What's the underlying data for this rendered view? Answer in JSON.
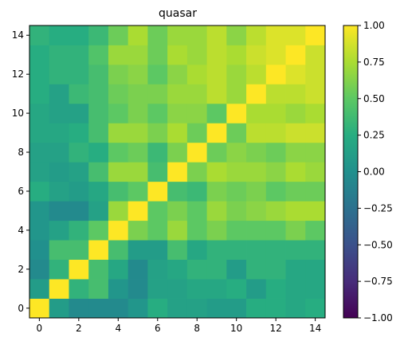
{
  "chart_data": {
    "type": "heatmap",
    "title": "quasar",
    "xlabel": "",
    "ylabel": "",
    "x_ticks": [
      "0",
      "2",
      "4",
      "6",
      "8",
      "10",
      "12",
      "14"
    ],
    "y_ticks": [
      "0",
      "2",
      "4",
      "6",
      "8",
      "10",
      "12",
      "14"
    ],
    "colorbar": {
      "colormap": "viridis",
      "range": [
        -1.0,
        1.0
      ],
      "ticks": [
        "1.00",
        "0.75",
        "0.50",
        "0.25",
        "0.00",
        "−0.25",
        "−0.50",
        "−0.75",
        "−1.00"
      ]
    },
    "row_order": "bottom-to-top",
    "matrix": [
      [
        1.0,
        0.1,
        -0.05,
        -0.05,
        -0.05,
        0.05,
        0.25,
        0.15,
        0.15,
        0.1,
        0.1,
        0.25,
        0.25,
        0.2,
        0.25
      ],
      [
        0.1,
        1.0,
        0.3,
        0.4,
        0.05,
        -0.05,
        0.15,
        0.15,
        0.2,
        0.2,
        0.25,
        0.1,
        0.25,
        0.2,
        0.2
      ],
      [
        -0.05,
        0.3,
        1.0,
        0.4,
        0.2,
        -0.05,
        0.15,
        0.2,
        0.3,
        0.3,
        0.1,
        0.3,
        0.3,
        0.2,
        0.2
      ],
      [
        0.0,
        0.4,
        0.4,
        1.0,
        0.4,
        0.1,
        0.1,
        0.4,
        0.2,
        0.3,
        0.3,
        0.3,
        0.3,
        0.3,
        0.3
      ],
      [
        0.05,
        0.15,
        0.3,
        0.5,
        1.0,
        0.6,
        0.5,
        0.7,
        0.5,
        0.6,
        0.5,
        0.5,
        0.5,
        0.6,
        0.5
      ],
      [
        0.05,
        -0.05,
        -0.05,
        0.15,
        0.7,
        1.0,
        0.5,
        0.6,
        0.5,
        0.7,
        0.6,
        0.65,
        0.7,
        0.75,
        0.75
      ],
      [
        0.25,
        0.15,
        0.1,
        0.2,
        0.4,
        0.5,
        1.0,
        0.4,
        0.35,
        0.6,
        0.55,
        0.6,
        0.5,
        0.55,
        0.55
      ],
      [
        0.15,
        0.1,
        0.15,
        0.4,
        0.7,
        0.7,
        0.4,
        1.0,
        0.6,
        0.75,
        0.7,
        0.7,
        0.65,
        0.75,
        0.7
      ],
      [
        0.15,
        0.15,
        0.3,
        0.25,
        0.5,
        0.55,
        0.35,
        0.6,
        1.0,
        0.55,
        0.65,
        0.6,
        0.55,
        0.65,
        0.65
      ],
      [
        0.2,
        0.2,
        0.25,
        0.4,
        0.7,
        0.7,
        0.6,
        0.75,
        0.55,
        1.0,
        0.55,
        0.8,
        0.8,
        0.85,
        0.85
      ],
      [
        0.2,
        0.15,
        0.15,
        0.4,
        0.5,
        0.6,
        0.5,
        0.65,
        0.65,
        0.5,
        1.0,
        0.75,
        0.75,
        0.7,
        0.75
      ],
      [
        0.25,
        0.15,
        0.35,
        0.4,
        0.55,
        0.6,
        0.6,
        0.7,
        0.7,
        0.8,
        0.7,
        1.0,
        0.8,
        0.8,
        0.85
      ],
      [
        0.25,
        0.3,
        0.3,
        0.4,
        0.6,
        0.65,
        0.5,
        0.65,
        0.75,
        0.8,
        0.7,
        0.8,
        1.0,
        0.9,
        0.85
      ],
      [
        0.25,
        0.3,
        0.3,
        0.45,
        0.7,
        0.7,
        0.55,
        0.75,
        0.7,
        0.8,
        0.75,
        0.85,
        0.9,
        1.0,
        0.85
      ],
      [
        0.3,
        0.25,
        0.25,
        0.35,
        0.55,
        0.75,
        0.55,
        0.7,
        0.7,
        0.8,
        0.65,
        0.8,
        0.9,
        0.9,
        1.0
      ]
    ]
  }
}
